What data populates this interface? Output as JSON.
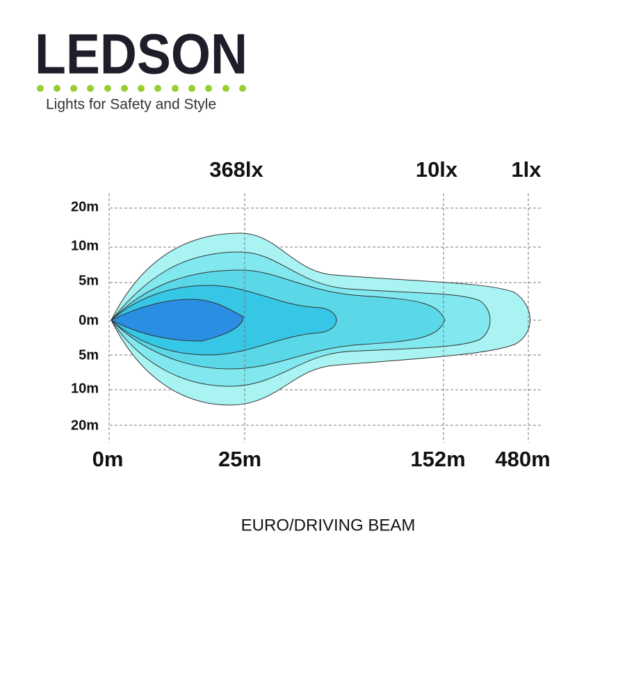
{
  "logo": {
    "name": "LEDSON",
    "tagline": "Lights for Safety and Style"
  },
  "lux_labels": [
    "368lx",
    "10lx",
    "1lx"
  ],
  "y_labels": [
    "20m",
    "10m",
    "5m",
    "0m",
    "5m",
    "10m",
    "20m"
  ],
  "x_labels": [
    "0m",
    "25m",
    "152m",
    "480m"
  ],
  "caption": "EURO/DRIVING BEAM"
}
